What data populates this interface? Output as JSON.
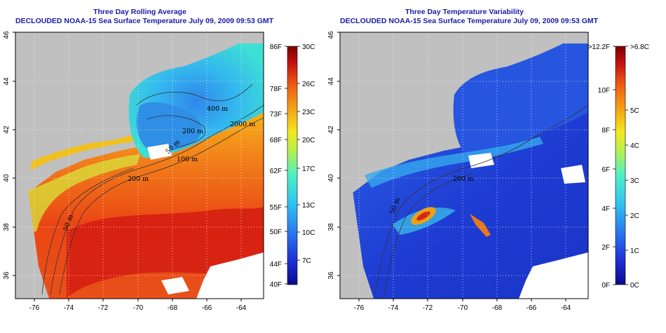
{
  "left_panel": {
    "title_line1": "Three Day Rolling Average",
    "title_line2": "DECLOUDED NOAA-15 Sea Surface Temperature July 09, 2009 09:53 GMT",
    "x_ticks": [
      "-76",
      "-74",
      "-72",
      "-70",
      "-68",
      "-66",
      "-64"
    ],
    "y_ticks": [
      "36",
      "38",
      "40",
      "42",
      "44",
      "46"
    ],
    "contour_labels": [
      "400 m",
      "2000 m",
      "200 m",
      "200 m",
      "50 m",
      "100 m",
      "50 m"
    ],
    "colorbar": {
      "celsius_labels": [
        "30C",
        "26C",
        "23C",
        "20C",
        "17C",
        "13C",
        "10C",
        "7C"
      ],
      "fahrenheit_labels": [
        "86F",
        "78F",
        "73F",
        "68F",
        "62F",
        "55F",
        "50F",
        "44F",
        "40F"
      ],
      "colors": [
        "#0a0a8c",
        "#1e2fd6",
        "#2a78f0",
        "#2fc3f2",
        "#4ef0c4",
        "#b4f050",
        "#f2e81e",
        "#f5a014",
        "#ef5a14",
        "#c41010",
        "#7c0000"
      ]
    }
  },
  "right_panel": {
    "title_line1": "Three Day Temperature Variability",
    "title_line2": "DECLOUDED NOAA-15 Sea Surface Temperature July 09, 2009 09:53 GMT",
    "x_ticks": [
      "-76",
      "-74",
      "-72",
      "-70",
      "-68",
      "-66",
      "-64"
    ],
    "y_ticks": [
      "36",
      "38",
      "40",
      "42",
      "44",
      "46"
    ],
    "contour_labels": [
      "200 m",
      "50 m"
    ],
    "colorbar": {
      "celsius_labels": [
        ">6.8C",
        "5C",
        "4C",
        "3C",
        "2C",
        "1C",
        "0C"
      ],
      "fahrenheit_labels": [
        ">12.2F",
        "10F",
        "8F",
        "6F",
        "4F",
        "2F",
        "0F"
      ],
      "colors": [
        "#0a0a8c",
        "#1e2fd6",
        "#2a78f0",
        "#2fc3f2",
        "#4ef0c4",
        "#b4f050",
        "#f2e81e",
        "#f5a014",
        "#ef5a14",
        "#c41010",
        "#7c0000"
      ]
    }
  },
  "map_colors": {
    "land": "#c0c0c0",
    "cloud": "#ffffff",
    "warm_deep": "#e82812",
    "warm_mid": "#f06414",
    "warm_light": "#f5a21a",
    "gulf": "#cc1a10",
    "shelf": "#b8e23a",
    "gulf_maine_cool": "#3aa0ec",
    "gulf_maine_mid": "#36d2e4",
    "var_base": "#1f3fd6",
    "var_mid": "#2f7af0",
    "var_hot": "#e23a18"
  }
}
